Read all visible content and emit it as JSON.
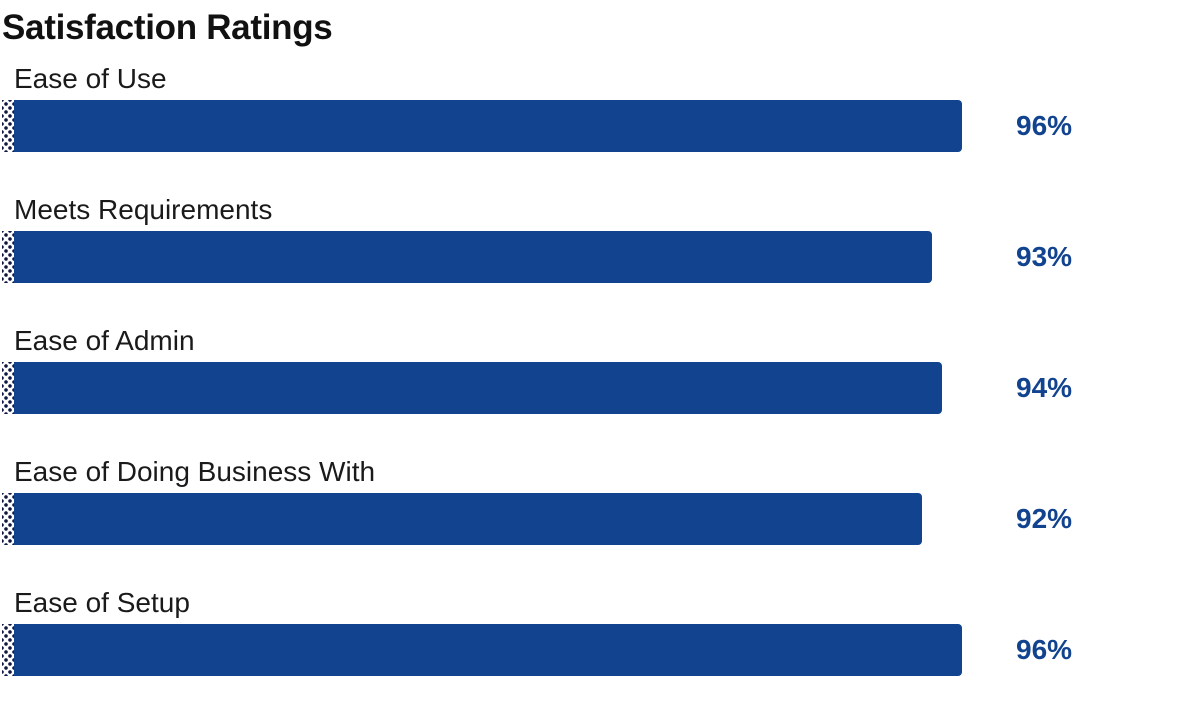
{
  "chart_data": {
    "type": "bar",
    "orientation": "horizontal",
    "title": "Satisfaction Ratings",
    "xlabel": "",
    "ylabel": "",
    "xlim": [
      0,
      100
    ],
    "grid": false,
    "categories": [
      "Ease of Use",
      "Meets Requirements",
      "Ease of Admin",
      "Ease of Doing Business With",
      "Ease of Setup"
    ],
    "values": [
      96,
      93,
      94,
      92,
      96
    ],
    "value_labels": [
      "96%",
      "93%",
      "94%",
      "92%",
      "96%"
    ],
    "unit": "%"
  },
  "colors": {
    "bar": "#12438f",
    "value_text": "#12438f"
  }
}
